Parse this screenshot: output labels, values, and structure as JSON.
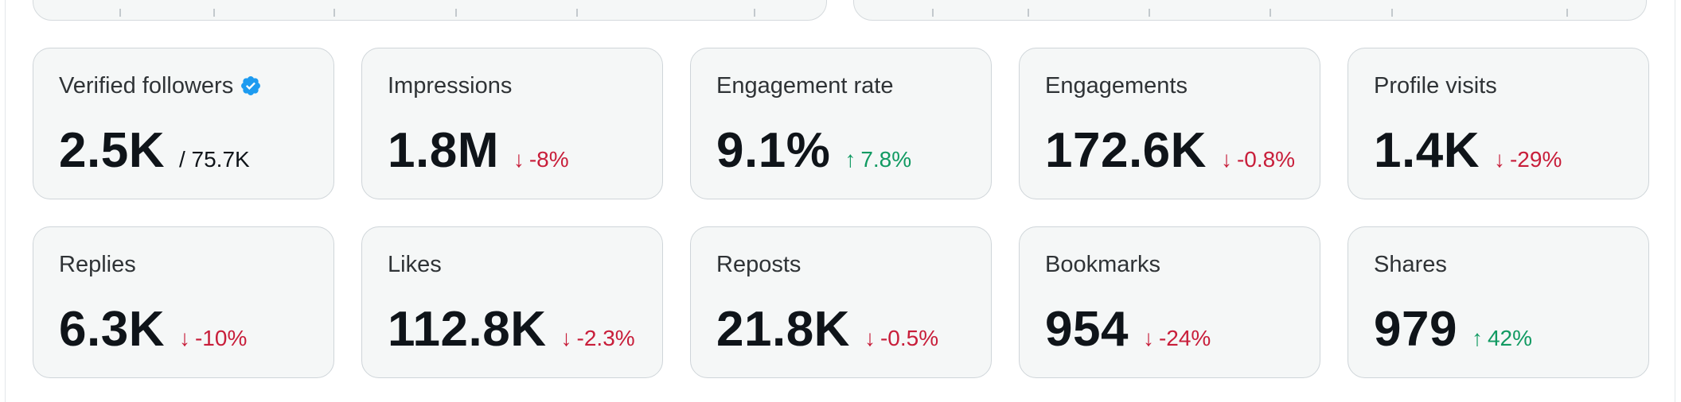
{
  "colors": {
    "card_bg": "#f5f7f7",
    "card_border": "#cfd5d9",
    "value_text": "#0f1419",
    "label_text": "#2f3336",
    "negative": "#c81e3a",
    "positive": "#119a62",
    "verified_badge": "#1d9bf0"
  },
  "metrics": [
    {
      "label": "Verified followers",
      "icon": "verified-badge-icon",
      "value": "2.5K",
      "total": "/ 75.7K"
    },
    {
      "label": "Impressions",
      "value": "1.8M",
      "change": "-8%",
      "direction": "down"
    },
    {
      "label": "Engagement rate",
      "value": "9.1%",
      "change": "7.8%",
      "direction": "up"
    },
    {
      "label": "Engagements",
      "value": "172.6K",
      "change": "-0.8%",
      "direction": "down"
    },
    {
      "label": "Profile visits",
      "value": "1.4K",
      "change": "-29%",
      "direction": "down"
    },
    {
      "label": "Replies",
      "value": "6.3K",
      "change": "-10%",
      "direction": "down"
    },
    {
      "label": "Likes",
      "value": "112.8K",
      "change": "-2.3%",
      "direction": "down"
    },
    {
      "label": "Reposts",
      "value": "21.8K",
      "change": "-0.5%",
      "direction": "down"
    },
    {
      "label": "Bookmarks",
      "value": "954",
      "change": "-24%",
      "direction": "down"
    },
    {
      "label": "Shares",
      "value": "979",
      "change": "42%",
      "direction": "up"
    }
  ]
}
